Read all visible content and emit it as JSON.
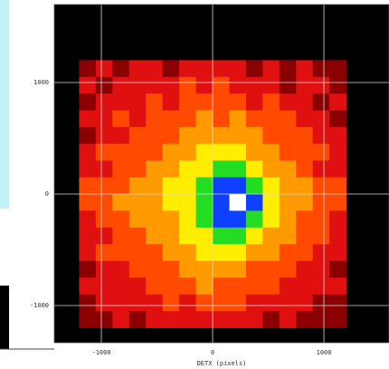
{
  "chart_data": {
    "type": "heatmap",
    "x_label": "DETX (pixels)",
    "xlim": [
      -1423,
      1585
    ],
    "ylim": [
      -1333,
      1699
    ],
    "xticks": [
      {
        "value": -1000,
        "label": "-1000"
      },
      0,
      1000
    ],
    "yticks": [
      {
        "value": -1000,
        "label": "-1000"
      },
      0,
      1000
    ],
    "grid": true,
    "background": "#000000",
    "x_range": [
      -1200,
      1200
    ],
    "y_range": [
      -1200,
      1200
    ],
    "colormap": [
      "#000000",
      "#8b0000",
      "#e01010",
      "#ff4a00",
      "#ff9a00",
      "#ffee00",
      "#22dd22",
      "#1040ff",
      "#ffffff"
    ],
    "z": [
      [
        1,
        2,
        1,
        2,
        2,
        1,
        2,
        2,
        2,
        2,
        1,
        2,
        1,
        2,
        1,
        1
      ],
      [
        2,
        1,
        2,
        2,
        2,
        2,
        3,
        2,
        3,
        2,
        2,
        2,
        1,
        2,
        2,
        1
      ],
      [
        1,
        2,
        2,
        2,
        3,
        2,
        3,
        3,
        3,
        3,
        2,
        3,
        2,
        2,
        1,
        2
      ],
      [
        2,
        2,
        3,
        2,
        3,
        3,
        3,
        4,
        3,
        4,
        3,
        3,
        3,
        2,
        2,
        1
      ],
      [
        1,
        2,
        2,
        3,
        3,
        3,
        4,
        4,
        4,
        4,
        4,
        3,
        3,
        3,
        2,
        2
      ],
      [
        2,
        3,
        3,
        3,
        3,
        4,
        4,
        5,
        5,
        5,
        4,
        4,
        3,
        3,
        3,
        2
      ],
      [
        2,
        2,
        3,
        3,
        4,
        4,
        5,
        5,
        6,
        6,
        5,
        4,
        4,
        3,
        2,
        2
      ],
      [
        3,
        3,
        3,
        4,
        4,
        5,
        5,
        6,
        7,
        7,
        6,
        5,
        4,
        4,
        3,
        3
      ],
      [
        3,
        3,
        4,
        4,
        4,
        5,
        5,
        6,
        7,
        8,
        7,
        5,
        4,
        4,
        3,
        3
      ],
      [
        2,
        3,
        3,
        4,
        4,
        4,
        5,
        6,
        7,
        7,
        6,
        5,
        4,
        3,
        3,
        2
      ],
      [
        2,
        2,
        3,
        3,
        4,
        4,
        5,
        5,
        6,
        6,
        5,
        4,
        4,
        3,
        3,
        2
      ],
      [
        2,
        3,
        3,
        3,
        3,
        4,
        4,
        5,
        5,
        5,
        4,
        4,
        3,
        3,
        2,
        2
      ],
      [
        1,
        2,
        2,
        3,
        3,
        3,
        4,
        4,
        4,
        4,
        3,
        3,
        3,
        2,
        2,
        1
      ],
      [
        2,
        2,
        2,
        2,
        3,
        3,
        3,
        4,
        3,
        3,
        3,
        3,
        2,
        2,
        2,
        2
      ],
      [
        1,
        2,
        2,
        2,
        2,
        3,
        2,
        3,
        3,
        3,
        2,
        2,
        2,
        2,
        1,
        1
      ],
      [
        1,
        1,
        2,
        1,
        2,
        2,
        2,
        2,
        2,
        2,
        2,
        1,
        2,
        1,
        1,
        1
      ]
    ]
  }
}
